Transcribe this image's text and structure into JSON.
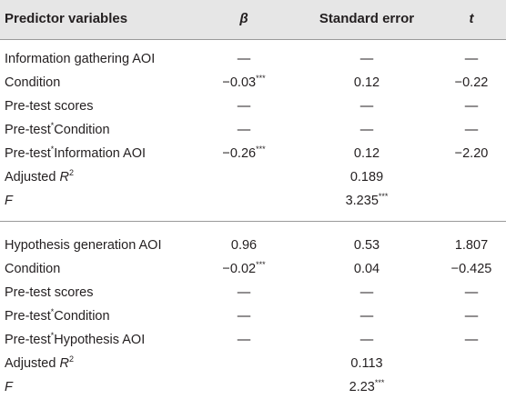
{
  "header": {
    "predictor": "Predictor variables",
    "beta": "β",
    "se": "Standard error",
    "t": "t"
  },
  "sections": [
    {
      "rows": [
        {
          "label": "Information gathering AOI",
          "beta": "—",
          "beta_sup": "",
          "se": "—",
          "se_sup": "",
          "t": "—"
        },
        {
          "label": "Condition",
          "beta": "−0.03",
          "beta_sup": "***",
          "se": "0.12",
          "se_sup": "",
          "t": "−0.22"
        },
        {
          "label": "Pre-test scores",
          "beta": "—",
          "beta_sup": "",
          "se": "—",
          "se_sup": "",
          "t": "—"
        },
        {
          "label_pre": "Pre-test",
          "label_sup": "*",
          "label_post": "Condition",
          "beta": "—",
          "beta_sup": "",
          "se": "—",
          "se_sup": "",
          "t": "—"
        },
        {
          "label_pre": "Pre-test",
          "label_sup": "*",
          "label_post": "Information AOI",
          "beta": "−0.26",
          "beta_sup": "***",
          "se": "0.12",
          "se_sup": "",
          "t": "−2.20"
        },
        {
          "label_pre": "Adjusted ",
          "label_it": "R",
          "label_sup": "2",
          "beta": "",
          "beta_sup": "",
          "se": "0.189",
          "se_sup": "",
          "t": ""
        },
        {
          "label_it": "F",
          "beta": "",
          "beta_sup": "",
          "se": "3.235",
          "se_sup": "***",
          "t": ""
        }
      ]
    },
    {
      "rows": [
        {
          "label": "Hypothesis generation AOI",
          "beta": "0.96",
          "beta_sup": "",
          "se": "0.53",
          "se_sup": "",
          "t": "1.807"
        },
        {
          "label": "Condition",
          "beta": "−0.02",
          "beta_sup": "***",
          "se": "0.04",
          "se_sup": "",
          "t": "−0.425"
        },
        {
          "label": "Pre-test scores",
          "beta": "—",
          "beta_sup": "",
          "se": "—",
          "se_sup": "",
          "t": "—"
        },
        {
          "label_pre": "Pre-test",
          "label_sup": "*",
          "label_post": "Condition",
          "beta": "—",
          "beta_sup": "",
          "se": "—",
          "se_sup": "",
          "t": "—"
        },
        {
          "label_pre": "Pre-test",
          "label_sup": "*",
          "label_post": "Hypothesis AOI",
          "beta": "—",
          "beta_sup": "",
          "se": "—",
          "se_sup": "",
          "t": "—"
        },
        {
          "label_pre": "Adjusted ",
          "label_it": "R",
          "label_sup": "2",
          "beta": "",
          "beta_sup": "",
          "se": "0.113",
          "se_sup": "",
          "t": ""
        },
        {
          "label_it": "F",
          "beta": "",
          "beta_sup": "",
          "se": "2.23",
          "se_sup": "***",
          "t": ""
        }
      ]
    }
  ]
}
